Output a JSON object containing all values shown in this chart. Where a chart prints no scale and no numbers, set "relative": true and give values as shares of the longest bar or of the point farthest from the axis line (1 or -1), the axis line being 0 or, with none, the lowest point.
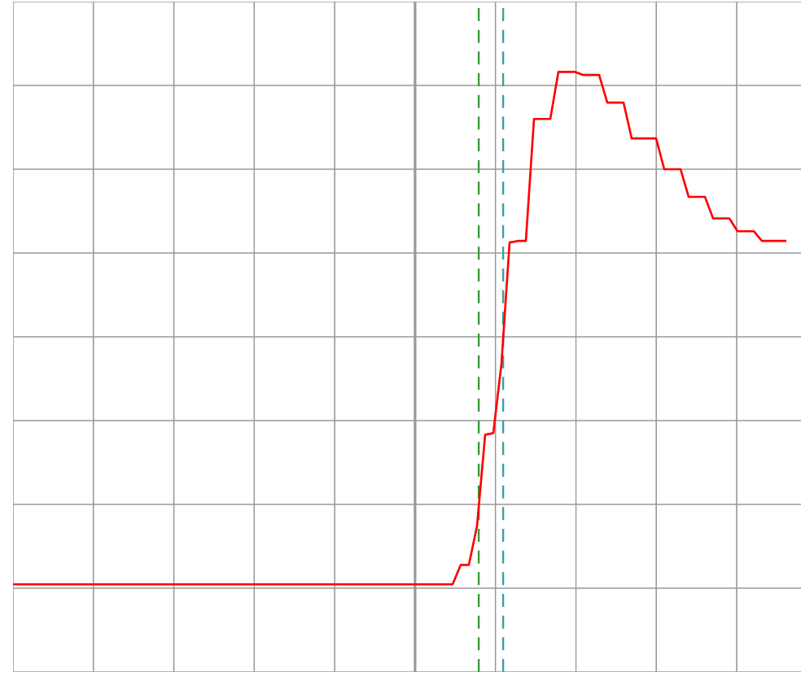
{
  "chart_data": {
    "type": "line",
    "relative": true,
    "grid": true,
    "color": "#ff0000",
    "categories": [
      null,
      null,
      null,
      null,
      null,
      null,
      null,
      null,
      null,
      null,
      null,
      null,
      null,
      null,
      null,
      null,
      null,
      null,
      null,
      null,
      null,
      null,
      null,
      null,
      null,
      null,
      null,
      null,
      null,
      null,
      null,
      null,
      null,
      null,
      null,
      null,
      null,
      null,
      null,
      null,
      null,
      null,
      null,
      null,
      null,
      null,
      null,
      null,
      null,
      null,
      null,
      null,
      null,
      null,
      null,
      null,
      null,
      null,
      null,
      null,
      null,
      null,
      null,
      null,
      null,
      null,
      null,
      null,
      null,
      null,
      null,
      null,
      null,
      null,
      null,
      null,
      null,
      null,
      null,
      null,
      null,
      null,
      null,
      null,
      null,
      null,
      null,
      null,
      null,
      null,
      null,
      null,
      null,
      null,
      null,
      null
    ],
    "values": [
      0,
      0,
      0,
      0,
      0,
      0,
      0,
      0,
      0,
      0,
      0,
      0,
      0,
      0,
      0,
      0,
      0,
      0,
      0,
      0,
      0,
      0,
      0,
      0,
      0,
      0,
      0,
      0,
      0,
      0,
      0,
      0,
      0,
      0,
      0,
      0,
      0,
      0,
      0,
      0,
      0,
      0,
      0,
      0,
      0,
      0,
      0,
      0,
      0,
      0,
      0,
      0,
      0,
      0,
      0,
      0.038,
      0.038,
      0.114,
      0.292,
      0.295,
      0.43,
      0.667,
      0.67,
      0.67,
      0.908,
      0.908,
      0.908,
      1,
      1,
      1,
      0.994,
      0.994,
      0.994,
      0.94,
      0.94,
      0.94,
      0.87,
      0.87,
      0.87,
      0.87,
      0.81,
      0.81,
      0.81,
      0.756,
      0.756,
      0.756,
      0.714,
      0.714,
      0.714,
      0.689,
      0.689,
      0.689,
      0.67,
      0.67,
      0.67,
      0.67
    ]
  }
}
